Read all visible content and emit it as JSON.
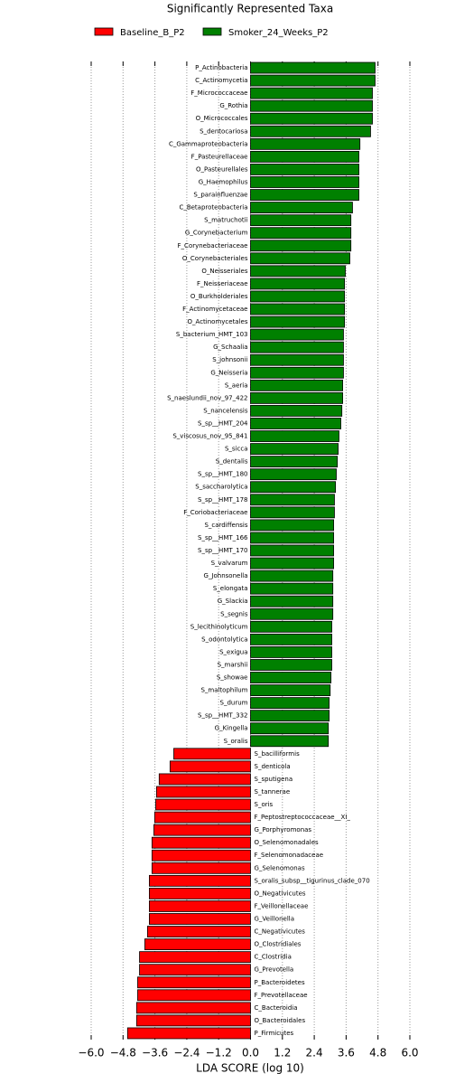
{
  "chart_data": {
    "type": "lefse_bar",
    "title": "Significantly Represented Taxa",
    "xlabel": "LDA SCORE (log 10)",
    "categories": [
      "P_Actinobacteria",
      "C_Actinomycetia",
      "F_Micrococcaceae",
      "G_Rothia",
      "O_Micrococcales",
      "S_dentocariosa",
      "C_Gammaproteobacteria",
      "F_Pasteurellaceae",
      "O_Pasteurellales",
      "G_Haemophilus",
      "S_parainfluenzae",
      "C_Betaproteobacteria",
      "S_matruchotii",
      "G_Corynebacterium",
      "F_Corynebacteriaceae",
      "O_Corynebacteriales",
      "O_Neisseriales",
      "F_Neisseriaceae",
      "O_Burkholderiales",
      "F_Actinomycetaceae",
      "O_Actinomycetales",
      "S_bacterium_HMT_103",
      "G_Schaalia",
      "S_johnsonii",
      "G_Neisseria",
      "S_aeria",
      "S_naeslundii_nov_97_422",
      "S_nancelensis",
      "S_sp__HMT_204",
      "S_viscosus_nov_95_841",
      "S_sicca",
      "S_dentalis",
      "S_sp__HMT_180",
      "S_saccharolytica",
      "S_sp__HMT_178",
      "F_Coriobacteriaceae",
      "S_cardiffensis",
      "S_sp__HMT_166",
      "S_sp__HMT_170",
      "S_valvarum",
      "G_Johnsonella",
      "S_elongata",
      "G_Slackia",
      "S_segnis",
      "S_lecithinolyticum",
      "S_odontolytica",
      "S_exigua",
      "S_marshii",
      "S_showae",
      "S_maltophilum",
      "S_durum",
      "S_sp__HMT_332",
      "G_Kingella",
      "S_oralis",
      "S_bacilliformis",
      "S_denticola",
      "S_sputigena",
      "S_tannerae",
      "S_oris",
      "F_Peptostreptococcaceae__XI_",
      "G_Porphyromonas",
      "O_Selenomonadales",
      "F_Selenomonadaceae",
      "G_Selenomonas",
      "S_oralis_subsp__tigurinus_clade_070",
      "O_Negativicutes",
      "F_Veillonellaceae",
      "G_Veillonella",
      "C_Negativicutes",
      "O_Clostridiales",
      "C_Clostridia",
      "G_Prevotella",
      "P_Bacteroidetes",
      "F_Prevotellaceae",
      "C_Bacteroidia",
      "O_Bacteroidales",
      "P_Firmicutes"
    ],
    "series": [
      {
        "name": "Baseline_B_P2",
        "color": "#ff0000",
        "values": [
          null,
          null,
          null,
          null,
          null,
          null,
          null,
          null,
          null,
          null,
          null,
          null,
          null,
          null,
          null,
          null,
          null,
          null,
          null,
          null,
          null,
          null,
          null,
          null,
          null,
          null,
          null,
          null,
          null,
          null,
          null,
          null,
          null,
          null,
          null,
          null,
          null,
          null,
          null,
          null,
          null,
          null,
          null,
          null,
          null,
          null,
          null,
          null,
          null,
          null,
          null,
          null,
          null,
          null,
          -2.89,
          -3.03,
          -3.44,
          -3.54,
          -3.57,
          -3.61,
          -3.64,
          -3.71,
          -3.71,
          -3.71,
          -3.81,
          -3.81,
          -3.81,
          -3.81,
          -3.88,
          -3.98,
          -4.18,
          -4.18,
          -4.25,
          -4.25,
          -4.29,
          -4.29,
          -4.63
        ]
      },
      {
        "name": "Smoker_24_Weeks_P2",
        "color": "#008000",
        "values": [
          4.69,
          4.69,
          4.59,
          4.59,
          4.59,
          4.52,
          4.12,
          4.08,
          4.08,
          4.08,
          4.08,
          3.84,
          3.78,
          3.78,
          3.78,
          3.74,
          3.57,
          3.54,
          3.54,
          3.54,
          3.54,
          3.5,
          3.5,
          3.5,
          3.5,
          3.47,
          3.47,
          3.44,
          3.4,
          3.33,
          3.3,
          3.27,
          3.23,
          3.2,
          3.16,
          3.16,
          3.13,
          3.13,
          3.13,
          3.13,
          3.1,
          3.1,
          3.1,
          3.1,
          3.06,
          3.06,
          3.06,
          3.06,
          3.03,
          3.0,
          2.96,
          2.96,
          2.93,
          2.93,
          null,
          null,
          null,
          null,
          null,
          null,
          null,
          null,
          null,
          null,
          null,
          null,
          null,
          null,
          null,
          null,
          null,
          null,
          null,
          null,
          null,
          null,
          null
        ]
      }
    ],
    "xlim": [
      -6.0,
      6.0
    ],
    "xticks": [
      {
        "value": -6.0,
        "label": "−6.0"
      },
      {
        "value": -4.8,
        "label": "−4.8"
      },
      {
        "value": -3.6,
        "label": "−3.6"
      },
      {
        "value": -2.4,
        "label": "−2.4"
      },
      {
        "value": -1.2,
        "label": "−1.2"
      },
      {
        "value": 0.0,
        "label": "0.0"
      },
      {
        "value": 1.2,
        "label": "1.2"
      },
      {
        "value": 2.4,
        "label": "2.4"
      },
      {
        "value": 3.6,
        "label": "3.6"
      },
      {
        "value": 4.8,
        "label": "4.8"
      },
      {
        "value": 6.0,
        "label": "6.0"
      }
    ],
    "grid": true
  }
}
